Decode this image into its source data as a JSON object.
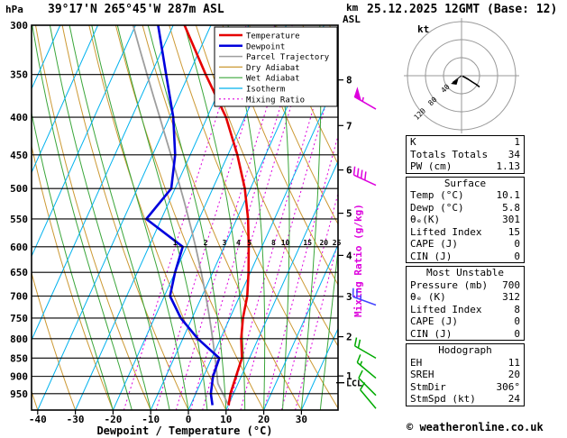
{
  "header": {
    "pressure_unit": "hPa",
    "station": "39°17'N 265°45'W 287m ASL",
    "altitude_unit_top": "km",
    "altitude_unit_bottom": "ASL",
    "datetime": "25.12.2025 12GMT (Base: 12)"
  },
  "axes": {
    "xlabel": "Dewpoint / Temperature (°C)",
    "pressure_ticks": [
      300,
      350,
      400,
      450,
      500,
      550,
      600,
      650,
      700,
      750,
      800,
      850,
      900,
      950
    ],
    "temp_ticks": [
      -40,
      -30,
      -20,
      -10,
      0,
      10,
      20,
      30
    ],
    "km_ticks": [
      8,
      7,
      6,
      5,
      4,
      3,
      2,
      1
    ],
    "mixing_ratio_axis_label": "Mixing Ratio (g/kg)",
    "lcl_label": "LCL"
  },
  "legend": [
    {
      "label": "Temperature",
      "color": "#e60000",
      "width": 2.5,
      "dash": ""
    },
    {
      "label": "Dewpoint",
      "color": "#0000dd",
      "width": 2.5,
      "dash": ""
    },
    {
      "label": "Parcel Trajectory",
      "color": "#9e9e9e",
      "width": 1.5,
      "dash": ""
    },
    {
      "label": "Dry Adiabat",
      "color": "#cc9933",
      "width": 1.2,
      "dash": ""
    },
    {
      "label": "Wet Adiabat",
      "color": "#3aa63a",
      "width": 1.2,
      "dash": ""
    },
    {
      "label": "Isotherm",
      "color": "#00b2ee",
      "width": 1.2,
      "dash": ""
    },
    {
      "label": "Mixing Ratio",
      "color": "#dd00dd",
      "width": 1.2,
      "dash": "2,3"
    }
  ],
  "chart_data": {
    "type": "line",
    "subtype": "skew-t-log-p",
    "title": "39°17'N 265°45'W 287m ASL — 25.12.2025 12GMT (Base: 12)",
    "xlabel": "Dewpoint / Temperature (°C)",
    "ylabel": "hPa",
    "x_range": [
      -40,
      40
    ],
    "y_range_hPa": [
      1000,
      300
    ],
    "y_scale": "log",
    "series": [
      {
        "name": "Temperature",
        "color": "#e60000",
        "points_p_T": [
          [
            985,
            10.1
          ],
          [
            950,
            9.2
          ],
          [
            900,
            8.6
          ],
          [
            850,
            8.0
          ],
          [
            800,
            5.5
          ],
          [
            750,
            3.5
          ],
          [
            700,
            2.0
          ],
          [
            650,
            -0.5
          ],
          [
            600,
            -3.5
          ],
          [
            550,
            -7.0
          ],
          [
            500,
            -11.5
          ],
          [
            450,
            -17.5
          ],
          [
            400,
            -25.0
          ],
          [
            350,
            -35.5
          ],
          [
            300,
            -47.0
          ]
        ]
      },
      {
        "name": "Dewpoint",
        "color": "#0000dd",
        "points_p_T": [
          [
            985,
            5.8
          ],
          [
            950,
            4.0
          ],
          [
            900,
            2.5
          ],
          [
            850,
            2.0
          ],
          [
            800,
            -6.0
          ],
          [
            750,
            -13.0
          ],
          [
            700,
            -18.5
          ],
          [
            650,
            -20.0
          ],
          [
            600,
            -21.0
          ],
          [
            550,
            -34.0
          ],
          [
            500,
            -31.0
          ],
          [
            450,
            -34.0
          ],
          [
            400,
            -39.0
          ],
          [
            350,
            -46.0
          ],
          [
            300,
            -54.0
          ]
        ]
      }
    ],
    "parcel": {
      "name": "Parcel Trajectory",
      "color": "#9e9e9e",
      "surface_pressure": 985,
      "surface_temp": 10.1,
      "surface_dewp": 5.8
    },
    "background": {
      "isotherm_step_C": 10,
      "dry_adiabat_step_C": 10,
      "wet_adiabat_step_C": 5,
      "mixing_ratio_values_gkg": [
        1,
        2,
        3,
        4,
        5,
        8,
        10,
        15,
        20,
        25
      ]
    }
  },
  "wind_barbs": [
    {
      "pressure_hPa": 390,
      "speed_kt": 55,
      "dir_deg": 300,
      "color": "#dd00dd"
    },
    {
      "pressure_hPa": 495,
      "speed_kt": 40,
      "dir_deg": 295,
      "color": "#dd00dd"
    },
    {
      "pressure_hPa": 720,
      "speed_kt": 25,
      "dir_deg": 290,
      "color": "#4444ff"
    },
    {
      "pressure_hPa": 850,
      "speed_kt": 20,
      "dir_deg": 300,
      "color": "#00aa00"
    },
    {
      "pressure_hPa": 905,
      "speed_kt": 15,
      "dir_deg": 310,
      "color": "#00aa00"
    },
    {
      "pressure_hPa": 955,
      "speed_kt": 10,
      "dir_deg": 315,
      "color": "#00aa00"
    },
    {
      "pressure_hPa": 995,
      "speed_kt": 10,
      "dir_deg": 320,
      "color": "#00aa00"
    }
  ],
  "hodograph": {
    "unit": "kt",
    "ring_labels_kt": [
      40,
      80,
      120
    ],
    "trace_uv_kt": [
      [
        2,
        -1
      ],
      [
        8,
        -4
      ],
      [
        15,
        -8
      ],
      [
        24,
        -14
      ],
      [
        32,
        -19
      ],
      [
        40,
        -25
      ]
    ],
    "storm_motion": {
      "dir_deg": 306,
      "speed_kt": 24
    }
  },
  "table": {
    "sections": [
      {
        "header": null,
        "rows": [
          [
            "K",
            "1"
          ],
          [
            "Totals Totals",
            "34"
          ],
          [
            "PW (cm)",
            "1.13"
          ]
        ]
      },
      {
        "header": "Surface",
        "rows": [
          [
            "Temp (°C)",
            "10.1"
          ],
          [
            "Dewp (°C)",
            "5.8"
          ],
          [
            "θₑ(K)",
            "301"
          ],
          [
            "Lifted Index",
            "15"
          ],
          [
            "CAPE (J)",
            "0"
          ],
          [
            "CIN (J)",
            "0"
          ]
        ]
      },
      {
        "header": "Most Unstable",
        "rows": [
          [
            "Pressure (mb)",
            "700"
          ],
          [
            "θₑ (K)",
            "312"
          ],
          [
            "Lifted Index",
            "8"
          ],
          [
            "CAPE (J)",
            "0"
          ],
          [
            "CIN (J)",
            "0"
          ]
        ]
      },
      {
        "header": "Hodograph",
        "rows": [
          [
            "EH",
            "11"
          ],
          [
            "SREH",
            "20"
          ],
          [
            "StmDir",
            "306°"
          ],
          [
            "StmSpd (kt)",
            "24"
          ]
        ]
      }
    ]
  },
  "footer": "© weatheronline.co.uk"
}
